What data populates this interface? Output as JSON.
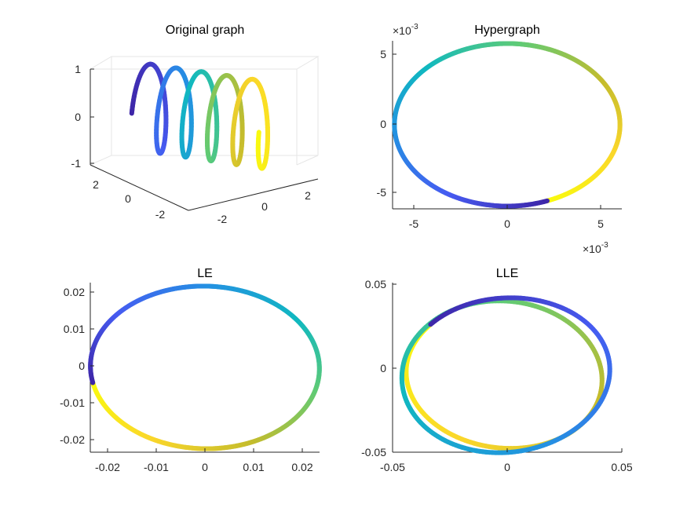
{
  "chart_data": [
    {
      "type": "line3d",
      "title": "Original graph",
      "xlim": [
        -3,
        3
      ],
      "ylim": [
        -3,
        3
      ],
      "zlim": [
        -1,
        1
      ],
      "xticks": [
        "-2",
        "0",
        "2"
      ],
      "yticks": [
        "-2",
        "0",
        "2"
      ],
      "zticks": [
        "-1",
        "0",
        "1"
      ],
      "series": {
        "curve": "helix along x with unit-radius loops in y-z",
        "turns": 5,
        "points": 400,
        "colormap": "parula"
      }
    },
    {
      "type": "line",
      "title": "Hypergraph",
      "xlim": [
        -6.2,
        6.2
      ],
      "ylim": [
        -6.2,
        6.2
      ],
      "xticks": [
        "-5",
        "0",
        "5"
      ],
      "yticks": [
        "-5",
        "0",
        "5"
      ],
      "xexponent": "×10",
      "xexponent_power": "-3",
      "yexponent": "×10",
      "yexponent_power": "-3",
      "series": {
        "curve": "ellipse",
        "center": [
          0,
          0
        ],
        "radii": [
          6.1,
          6.0
        ],
        "points": 400,
        "colormap": "parula"
      }
    },
    {
      "type": "line",
      "title": "LE",
      "xlim": [
        -0.0235,
        0.0235
      ],
      "ylim": [
        -0.0245,
        0.0225
      ],
      "xticks": [
        "-0.02",
        "-0.01",
        "0",
        "0.01",
        "0.02"
      ],
      "yticks": [
        "-0.02",
        "-0.01",
        "0",
        "0.01",
        "0.02"
      ],
      "series": {
        "curve": "tilted ellipse",
        "center": [
          0,
          -0.001
        ],
        "radii": [
          0.0235,
          0.0225
        ],
        "points": 400,
        "colormap": "parula"
      }
    },
    {
      "type": "line",
      "title": "LLE",
      "xlim": [
        -0.05,
        0.05
      ],
      "ylim": [
        -0.05,
        0.05
      ],
      "xticks": [
        "-0.05",
        "0",
        "0.05"
      ],
      "yticks": [
        "-0.05",
        "0",
        "0.05"
      ],
      "series": {
        "curve": "two overlapping offset ellipses",
        "loops": 2,
        "points": 400,
        "colormap": "parula"
      }
    }
  ]
}
